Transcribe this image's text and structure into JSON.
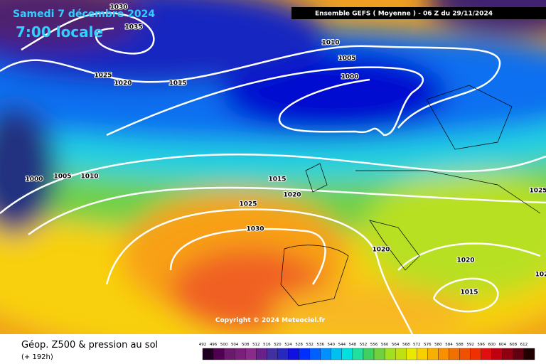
{
  "header": {
    "date": "Samedi 7 décembre 2024",
    "time": "7:00 locale",
    "run": "Ensemble GEFS  ( Moyenne )  -  06 Z du 29/11/2024"
  },
  "map": {
    "copyright": "Copyright © 2024 Meteociel.fr",
    "contour_labels": [
      "1030",
      "1035",
      "1025",
      "1020",
      "1015",
      "1010",
      "1005",
      "1000",
      "1000",
      "1005",
      "1010",
      "1015",
      "1020",
      "1025",
      "1030",
      "1020",
      "1020",
      "1015",
      "1025",
      "102"
    ]
  },
  "footer": {
    "title": "Géop. Z500 & pression au sol",
    "lead": "(+ 192h)"
  },
  "legend": {
    "labels": [
      492,
      496,
      500,
      504,
      508,
      512,
      516,
      520,
      524,
      528,
      532,
      536,
      540,
      544,
      548,
      552,
      556,
      560,
      564,
      568,
      572,
      576,
      580,
      584,
      588,
      592,
      596,
      600,
      604,
      608,
      612
    ]
  }
}
